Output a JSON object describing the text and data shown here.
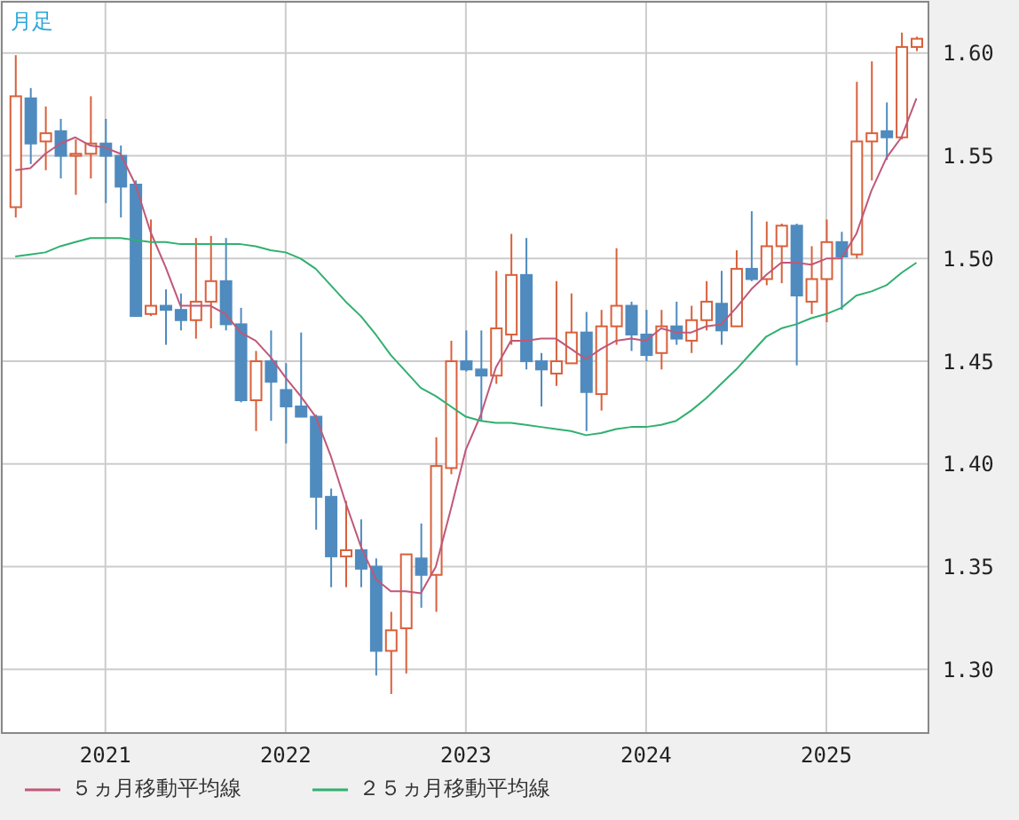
{
  "chart_data": {
    "type": "candlestick",
    "title": "月足",
    "x": [
      "2020-07",
      "2020-08",
      "2020-09",
      "2020-10",
      "2020-11",
      "2020-12",
      "2021-01",
      "2021-02",
      "2021-03",
      "2021-04",
      "2021-05",
      "2021-06",
      "2021-07",
      "2021-08",
      "2021-09",
      "2021-10",
      "2021-11",
      "2021-12",
      "2022-01",
      "2022-02",
      "2022-03",
      "2022-04",
      "2022-05",
      "2022-06",
      "2022-07",
      "2022-08",
      "2022-09",
      "2022-10",
      "2022-11",
      "2022-12",
      "2023-01",
      "2023-02",
      "2023-03",
      "2023-04",
      "2023-05",
      "2023-06",
      "2023-07",
      "2023-08",
      "2023-09",
      "2023-10",
      "2023-11",
      "2023-12",
      "2024-01",
      "2024-02",
      "2024-03",
      "2024-04",
      "2024-05",
      "2024-06",
      "2024-07",
      "2024-08",
      "2024-09",
      "2024-10",
      "2024-11",
      "2024-12",
      "2025-01",
      "2025-02",
      "2025-03",
      "2025-04",
      "2025-05",
      "2025-06",
      "2025-07"
    ],
    "ohlc": [
      [
        1.525,
        1.599,
        1.52,
        1.579
      ],
      [
        1.578,
        1.583,
        1.546,
        1.556
      ],
      [
        1.557,
        1.574,
        1.543,
        1.561
      ],
      [
        1.562,
        1.568,
        1.539,
        1.55
      ],
      [
        1.55,
        1.558,
        1.531,
        1.551
      ],
      [
        1.551,
        1.579,
        1.539,
        1.556
      ],
      [
        1.556,
        1.568,
        1.527,
        1.55
      ],
      [
        1.55,
        1.555,
        1.52,
        1.535
      ],
      [
        1.536,
        1.538,
        1.472,
        1.472
      ],
      [
        1.473,
        1.519,
        1.472,
        1.477
      ],
      [
        1.477,
        1.485,
        1.458,
        1.475
      ],
      [
        1.475,
        1.483,
        1.465,
        1.47
      ],
      [
        1.47,
        1.51,
        1.461,
        1.479
      ],
      [
        1.479,
        1.511,
        1.466,
        1.489
      ],
      [
        1.489,
        1.51,
        1.465,
        1.468
      ],
      [
        1.468,
        1.476,
        1.43,
        1.431
      ],
      [
        1.431,
        1.455,
        1.416,
        1.45
      ],
      [
        1.45,
        1.465,
        1.421,
        1.44
      ],
      [
        1.436,
        1.449,
        1.41,
        1.428
      ],
      [
        1.428,
        1.464,
        1.423,
        1.423
      ],
      [
        1.423,
        1.424,
        1.368,
        1.384
      ],
      [
        1.384,
        1.388,
        1.34,
        1.355
      ],
      [
        1.355,
        1.382,
        1.34,
        1.358
      ],
      [
        1.358,
        1.373,
        1.34,
        1.349
      ],
      [
        1.35,
        1.354,
        1.297,
        1.309
      ],
      [
        1.309,
        1.328,
        1.288,
        1.319
      ],
      [
        1.32,
        1.356,
        1.298,
        1.356
      ],
      [
        1.354,
        1.371,
        1.33,
        1.346
      ],
      [
        1.346,
        1.413,
        1.328,
        1.399
      ],
      [
        1.398,
        1.46,
        1.395,
        1.45
      ],
      [
        1.45,
        1.465,
        1.445,
        1.446
      ],
      [
        1.446,
        1.465,
        1.421,
        1.443
      ],
      [
        1.443,
        1.494,
        1.439,
        1.466
      ],
      [
        1.463,
        1.512,
        1.458,
        1.492
      ],
      [
        1.492,
        1.51,
        1.446,
        1.45
      ],
      [
        1.45,
        1.454,
        1.428,
        1.446
      ],
      [
        1.444,
        1.489,
        1.438,
        1.45
      ],
      [
        1.449,
        1.483,
        1.449,
        1.464
      ],
      [
        1.464,
        1.474,
        1.416,
        1.435
      ],
      [
        1.434,
        1.475,
        1.426,
        1.467
      ],
      [
        1.467,
        1.505,
        1.458,
        1.477
      ],
      [
        1.477,
        1.479,
        1.455,
        1.463
      ],
      [
        1.463,
        1.475,
        1.45,
        1.453
      ],
      [
        1.454,
        1.475,
        1.446,
        1.467
      ],
      [
        1.467,
        1.479,
        1.458,
        1.461
      ],
      [
        1.46,
        1.477,
        1.454,
        1.47
      ],
      [
        1.47,
        1.489,
        1.465,
        1.479
      ],
      [
        1.478,
        1.494,
        1.458,
        1.465
      ],
      [
        1.467,
        1.504,
        1.467,
        1.495
      ],
      [
        1.495,
        1.523,
        1.489,
        1.49
      ],
      [
        1.49,
        1.518,
        1.487,
        1.506
      ],
      [
        1.506,
        1.517,
        1.488,
        1.516
      ],
      [
        1.516,
        1.517,
        1.448,
        1.482
      ],
      [
        1.479,
        1.506,
        1.473,
        1.49
      ],
      [
        1.49,
        1.519,
        1.469,
        1.508
      ],
      [
        1.508,
        1.513,
        1.475,
        1.501
      ],
      [
        1.502,
        1.586,
        1.5,
        1.557
      ],
      [
        1.557,
        1.596,
        1.538,
        1.561
      ],
      [
        1.562,
        1.576,
        1.548,
        1.559
      ],
      [
        1.559,
        1.61,
        1.558,
        1.603
      ],
      [
        1.603,
        1.608,
        1.601,
        1.607
      ]
    ],
    "series": [
      {
        "name": "５ヵ月移動平均線",
        "type": "line",
        "color": "#c05878",
        "values": [
          1.543,
          1.544,
          1.551,
          1.556,
          1.559,
          1.555,
          1.554,
          1.551,
          1.536,
          1.513,
          1.496,
          1.477,
          1.477,
          1.477,
          1.473,
          1.464,
          1.46,
          1.452,
          1.442,
          1.433,
          1.423,
          1.404,
          1.381,
          1.36,
          1.344,
          1.338,
          1.338,
          1.337,
          1.35,
          1.378,
          1.407,
          1.424,
          1.447,
          1.46,
          1.46,
          1.461,
          1.461,
          1.456,
          1.451,
          1.456,
          1.46,
          1.461,
          1.46,
          1.466,
          1.464,
          1.464,
          1.467,
          1.468,
          1.476,
          1.485,
          1.492,
          1.498,
          1.498,
          1.497,
          1.5,
          1.5,
          1.512,
          1.533,
          1.549,
          1.559,
          1.578
        ]
      },
      {
        "name": "２５ヵ月移動平均線",
        "type": "line",
        "color": "#30b070",
        "values": [
          1.501,
          1.502,
          1.503,
          1.506,
          1.508,
          1.51,
          1.51,
          1.51,
          1.509,
          1.508,
          1.508,
          1.507,
          1.507,
          1.507,
          1.507,
          1.507,
          1.506,
          1.504,
          1.503,
          1.5,
          1.495,
          1.487,
          1.479,
          1.472,
          1.463,
          1.453,
          1.445,
          1.437,
          1.433,
          1.428,
          1.423,
          1.421,
          1.42,
          1.42,
          1.419,
          1.418,
          1.417,
          1.416,
          1.414,
          1.415,
          1.417,
          1.418,
          1.418,
          1.419,
          1.421,
          1.426,
          1.432,
          1.439,
          1.446,
          1.454,
          1.462,
          1.466,
          1.468,
          1.471,
          1.473,
          1.476,
          1.482,
          1.484,
          1.487,
          1.493,
          1.498
        ]
      }
    ],
    "xlim": [
      "2020-06-04",
      "2025-07-25"
    ],
    "xticks": [
      {
        "value": "2021-01",
        "label": "2021"
      },
      {
        "value": "2022-01",
        "label": "2022"
      },
      {
        "value": "2023-01",
        "label": "2023"
      },
      {
        "value": "2024-01",
        "label": "2024"
      },
      {
        "value": "2025-01",
        "label": "2025"
      }
    ],
    "ylim": [
      1.269,
      1.625
    ],
    "yticks": [
      {
        "value": 1.3,
        "label": "1.30"
      },
      1.35,
      {
        "value": 1.4,
        "label": "1.40"
      },
      1.45,
      {
        "value": 1.5,
        "label": "1.50"
      },
      1.55,
      {
        "value": 1.6,
        "label": "1.60"
      }
    ],
    "grid": true,
    "legend": "bottom"
  }
}
